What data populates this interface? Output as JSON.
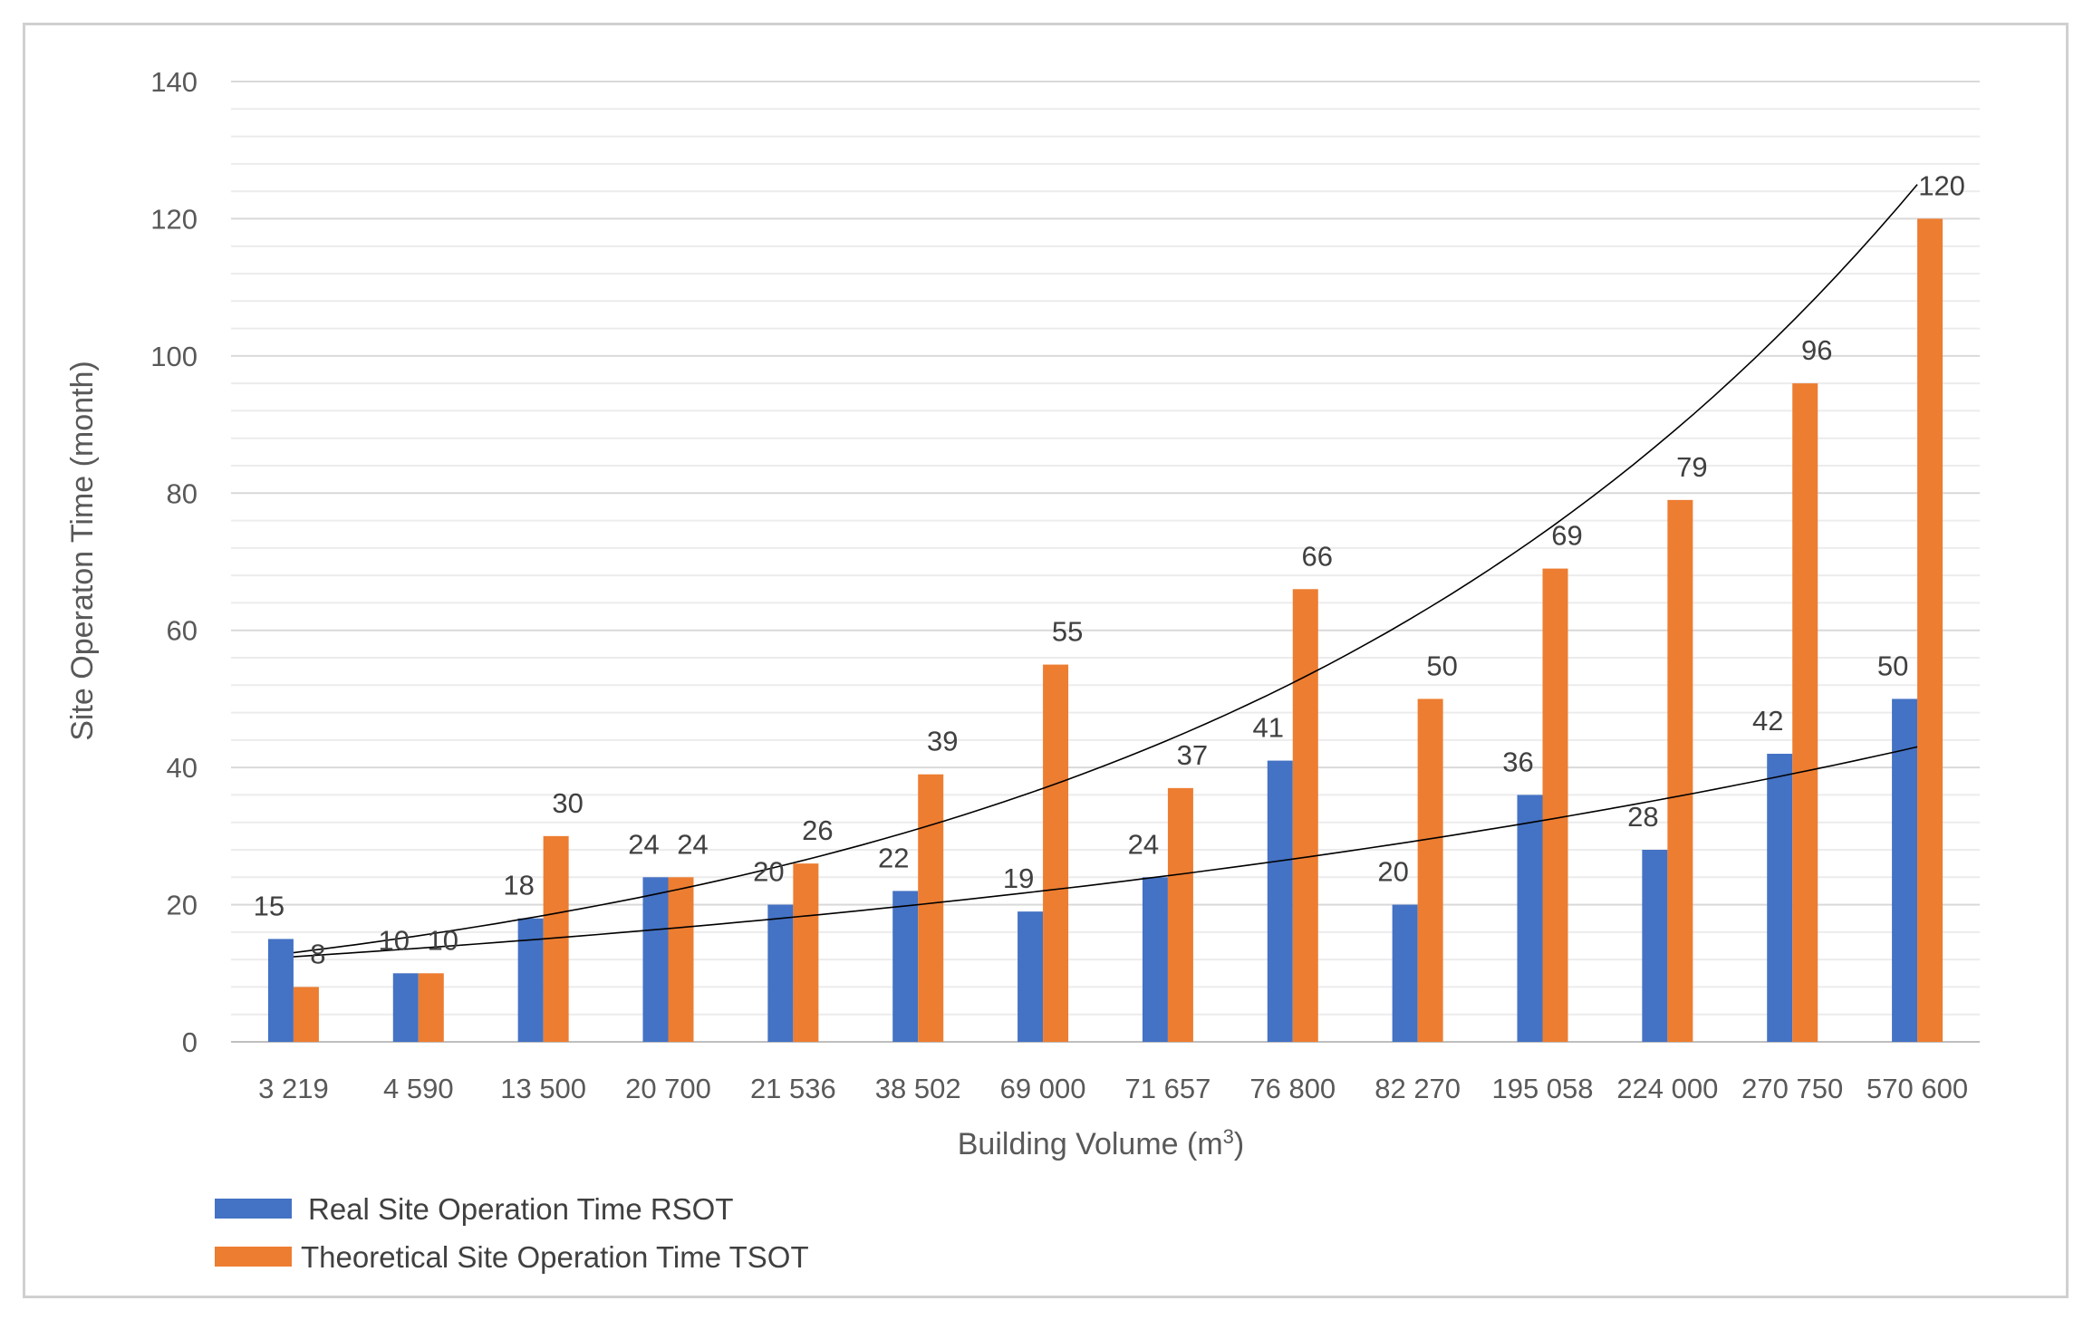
{
  "chart_data": {
    "type": "bar",
    "title": "",
    "xlabel": "Building Volume (m",
    "xlabel_superscript": "3",
    "xlabel_suffix": ")",
    "ylabel": "Site Operaton Time (month)",
    "ylim": [
      0,
      140
    ],
    "yticks": [
      0,
      20,
      40,
      60,
      80,
      100,
      120,
      140
    ],
    "grid": true,
    "legend_position": "bottom-left",
    "categories": [
      "3 219",
      "4 590",
      "13 500",
      "20 700",
      "21 536",
      "38 502",
      "69 000",
      "71 657",
      "76 800",
      "82 270",
      "195 058",
      "224 000",
      "270 750",
      "570 600"
    ],
    "series": [
      {
        "name": "Real Site Operation Time RSOT",
        "color": "#4472c4",
        "values": [
          15,
          10,
          18,
          24,
          20,
          22,
          19,
          24,
          41,
          20,
          36,
          28,
          42,
          50
        ]
      },
      {
        "name": "Theoretical Site Operation Time TSOT",
        "color": "#ed7d31",
        "values": [
          8,
          10,
          30,
          24,
          26,
          39,
          55,
          37,
          66,
          50,
          69,
          79,
          96,
          120
        ]
      }
    ],
    "trendlines": [
      {
        "series": "Real Site Operation Time RSOT",
        "type": "exponential",
        "start": 12.4,
        "end": 43,
        "color": "#000000"
      },
      {
        "series": "Theoretical Site Operation Time TSOT",
        "type": "exponential",
        "start": 13,
        "end": 125,
        "color": "#000000"
      }
    ]
  }
}
